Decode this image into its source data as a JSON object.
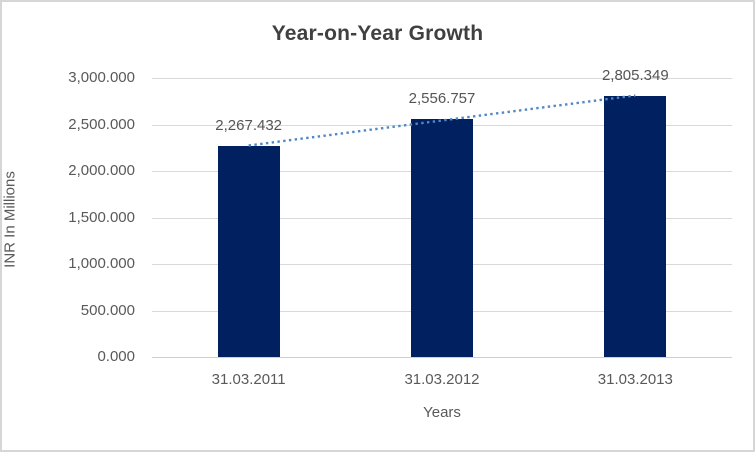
{
  "chart_data": {
    "type": "bar",
    "title": "Year-on-Year Growth",
    "xlabel": "Years",
    "ylabel": "INR In Millions",
    "categories": [
      "31.03.2011",
      "31.03.2012",
      "31.03.2013"
    ],
    "values": [
      2267.432,
      2556.757,
      2805.349
    ],
    "data_labels": [
      "2,267.432",
      "2,556.757",
      "2,805.349"
    ],
    "ylim": [
      0,
      3000
    ],
    "ytick_step": 500,
    "ytick_labels": [
      "0.000",
      "500.000",
      "1,000.000",
      "1,500.000",
      "2,000.000",
      "2,500.000",
      "3,000.000"
    ],
    "grid": true,
    "legend": "none",
    "trendline": {
      "type": "linear",
      "style": "dotted",
      "color": "#4f87c7"
    },
    "colors": {
      "bar": "#002060",
      "gridline": "#d9d9d9",
      "title_text": "#404040",
      "tick_text": "#595959",
      "background": "#ffffff",
      "border": "#d6d6d6"
    }
  }
}
